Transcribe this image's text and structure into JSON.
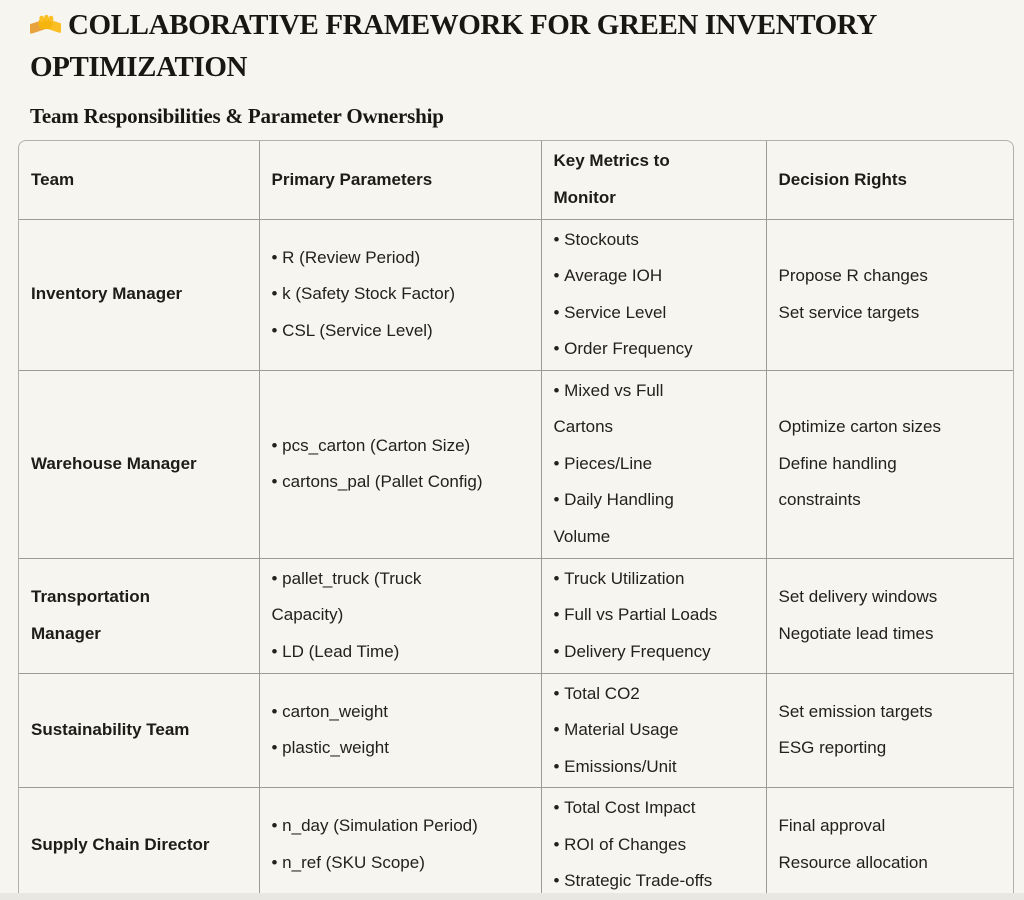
{
  "page": {
    "title_emoji": "🤝",
    "title": "COLLABORATIVE FRAMEWORK FOR GREEN INVENTORY OPTIMIZATION",
    "section_heading": "Team Responsibilities & Parameter Ownership"
  },
  "table": {
    "columns": [
      "Team",
      "Primary Parameters",
      "Key Metrics to Monitor",
      "Decision Rights"
    ],
    "rows": [
      {
        "team": "Inventory Manager",
        "parameters": [
          "R (Review Period)",
          "k (Safety Stock Factor)",
          "CSL (Service Level)"
        ],
        "metrics": [
          "Stockouts",
          "Average IOH",
          "Service Level",
          "Order Frequency"
        ],
        "decisions": [
          "Propose R changes",
          "Set service targets"
        ]
      },
      {
        "team": "Warehouse Manager",
        "parameters": [
          "pcs_carton (Carton Size)",
          "cartons_pal (Pallet Config)"
        ],
        "metrics": [
          "Mixed vs Full Cartons",
          "Pieces/Line",
          "Daily Handling Volume"
        ],
        "decisions": [
          "Optimize carton sizes",
          "Define handling constraints"
        ]
      },
      {
        "team": "Transportation Manager",
        "parameters": [
          "pallet_truck (Truck Capacity)",
          "LD (Lead Time)"
        ],
        "metrics": [
          "Truck Utilization",
          "Full vs Partial Loads",
          "Delivery Frequency"
        ],
        "decisions": [
          "Set delivery windows",
          "Negotiate lead times"
        ]
      },
      {
        "team": "Sustainability Team",
        "parameters": [
          "carton_weight",
          "plastic_weight"
        ],
        "metrics": [
          "Total CO2",
          "Material Usage",
          "Emissions/Unit"
        ],
        "decisions": [
          "Set emission targets",
          "ESG reporting"
        ]
      },
      {
        "team": "Supply Chain Director",
        "parameters": [
          "n_day (Simulation Period)",
          "n_ref (SKU Scope)"
        ],
        "metrics": [
          "Total Cost Impact",
          "ROI of Changes",
          "Strategic Trade-offs"
        ],
        "decisions": [
          "Final approval",
          "Resource allocation"
        ]
      }
    ]
  },
  "scrollbar": {
    "left_arrow": "scroll-left",
    "right_arrow": "scroll-right"
  },
  "colors": {
    "background": "#f7f5f0",
    "grid_border": "#9c9a94",
    "container_border": "#b3b0aa",
    "text": "#22211d",
    "emoji_yellow": "#fbbf24",
    "emoji_yellow_dark": "#e8a33d",
    "bottom_strip": "#e9e7e2"
  }
}
